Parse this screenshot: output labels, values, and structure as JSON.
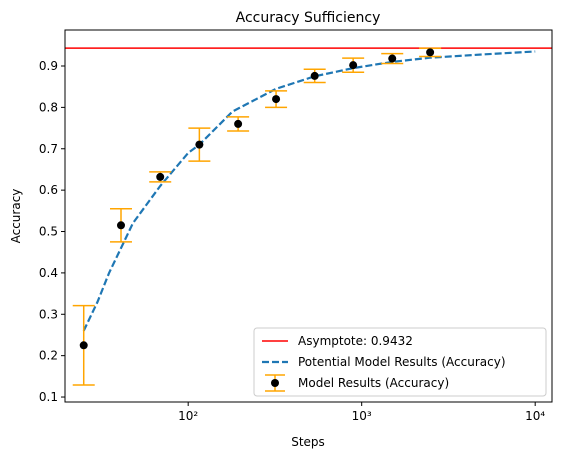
{
  "chart_data": {
    "type": "errorbar",
    "title": "Accuracy Sufficiency",
    "x_label": "Steps",
    "y_label": "Accuracy",
    "log_x": true,
    "xlim": [
      19.5,
      12500
    ],
    "ylim": [
      0.088,
      0.987
    ],
    "xticks": [
      {
        "value": 100,
        "label": "10²"
      },
      {
        "value": 1000,
        "label": "10³"
      },
      {
        "value": 10000,
        "label": "10⁴"
      }
    ],
    "yticks": [
      0.1,
      0.2,
      0.3,
      0.4,
      0.5,
      0.6,
      0.7,
      0.8,
      0.9
    ],
    "asymptote": {
      "value": 0.9432,
      "label": "Asymptote: 0.9432",
      "color": "#ff0000"
    },
    "curve": {
      "name": "Potential Model Results (Accuracy)",
      "color": "#1f77b4",
      "x": [
        25,
        30,
        35,
        41,
        48,
        69,
        100,
        116,
        180,
        321,
        536,
        893,
        1500,
        2480,
        5000,
        10000
      ],
      "values": [
        0.26,
        0.33,
        0.4,
        0.46,
        0.52,
        0.61,
        0.69,
        0.71,
        0.79,
        0.845,
        0.875,
        0.895,
        0.91,
        0.92,
        0.928,
        0.935
      ]
    },
    "points": {
      "name": "Model Results (Accuracy)",
      "color": "#000000",
      "error_color": "#ffa500",
      "x": [
        25,
        41,
        69,
        116,
        194,
        321,
        536,
        893,
        1500,
        2480
      ],
      "values": [
        0.225,
        0.515,
        0.632,
        0.71,
        0.76,
        0.82,
        0.876,
        0.902,
        0.918,
        0.933
      ],
      "errors": [
        0.096,
        0.04,
        0.012,
        0.04,
        0.017,
        0.02,
        0.016,
        0.017,
        0.012,
        0.01
      ]
    },
    "legend": "lower right"
  }
}
